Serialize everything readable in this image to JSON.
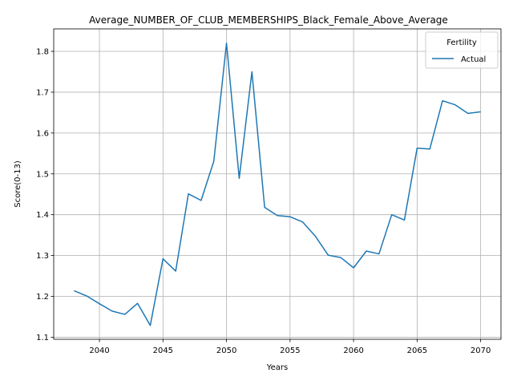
{
  "chart_data": {
    "type": "line",
    "title": "Average_NUMBER_OF_CLUB_MEMBERSHIPS_Black_Female_Above_Average",
    "xlabel": "Years",
    "ylabel": "Score(0-13)",
    "xlim": [
      2036.4,
      2071.6
    ],
    "ylim": [
      1.095,
      1.855
    ],
    "xticks": [
      2040,
      2045,
      2050,
      2055,
      2060,
      2065,
      2070
    ],
    "yticks": [
      1.1,
      1.2,
      1.3,
      1.4,
      1.5,
      1.6,
      1.7,
      1.8
    ],
    "grid": true,
    "legend": {
      "title": "Fertility",
      "placement": "top-right"
    },
    "series": [
      {
        "name": "Actual",
        "color": "#1f77b4",
        "x": [
          2038,
          2039,
          2040,
          2041,
          2042,
          2043,
          2044,
          2045,
          2046,
          2047,
          2048,
          2049,
          2050,
          2051,
          2052,
          2053,
          2054,
          2055,
          2056,
          2057,
          2058,
          2059,
          2060,
          2061,
          2062,
          2063,
          2064,
          2065,
          2066,
          2067,
          2068,
          2069,
          2070
        ],
        "y": [
          1.214,
          1.201,
          1.182,
          1.164,
          1.156,
          1.183,
          1.129,
          1.292,
          1.262,
          1.451,
          1.435,
          1.531,
          1.82,
          1.489,
          1.75,
          1.418,
          1.398,
          1.395,
          1.382,
          1.347,
          1.301,
          1.295,
          1.27,
          1.311,
          1.304,
          1.4,
          1.387,
          1.563,
          1.561,
          1.679,
          1.669,
          1.648,
          1.652
        ]
      }
    ]
  }
}
